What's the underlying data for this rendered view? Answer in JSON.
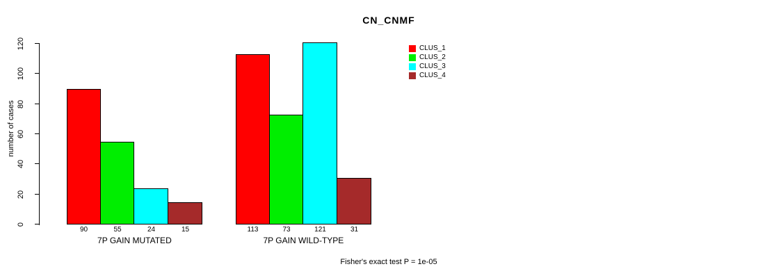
{
  "title": "CN_CNMF",
  "ylabel": "number of cases",
  "footer": "Fisher's exact test P = 1e-05",
  "legend": [
    {
      "label": "CLUS_1",
      "color": "#FF0000"
    },
    {
      "label": "CLUS_2",
      "color": "#00EE00"
    },
    {
      "label": "CLUS_3",
      "color": "#00FFFF"
    },
    {
      "label": "CLUS_4",
      "color": "#A52A2A"
    }
  ],
  "chart_data": {
    "type": "bar",
    "title": "CN_CNMF",
    "ylabel": "number of cases",
    "xlabel": "",
    "ylim": [
      0,
      120
    ],
    "yticks": [
      0,
      20,
      40,
      60,
      80,
      100,
      120
    ],
    "grid": false,
    "legend_position": "right",
    "categories": [
      "7P GAIN MUTATED",
      "7P GAIN WILD-TYPE"
    ],
    "series": [
      {
        "name": "CLUS_1",
        "color": "#FF0000",
        "values": [
          90,
          113
        ]
      },
      {
        "name": "CLUS_2",
        "color": "#00EE00",
        "values": [
          55,
          73
        ]
      },
      {
        "name": "CLUS_3",
        "color": "#00FFFF",
        "values": [
          24,
          121
        ]
      },
      {
        "name": "CLUS_4",
        "color": "#A52A2A",
        "values": [
          15,
          31
        ]
      }
    ],
    "bar_value_labels": [
      [
        90,
        55,
        24,
        15
      ],
      [
        113,
        73,
        121,
        31
      ]
    ],
    "annotation": "Fisher's exact test P = 1e-05"
  }
}
